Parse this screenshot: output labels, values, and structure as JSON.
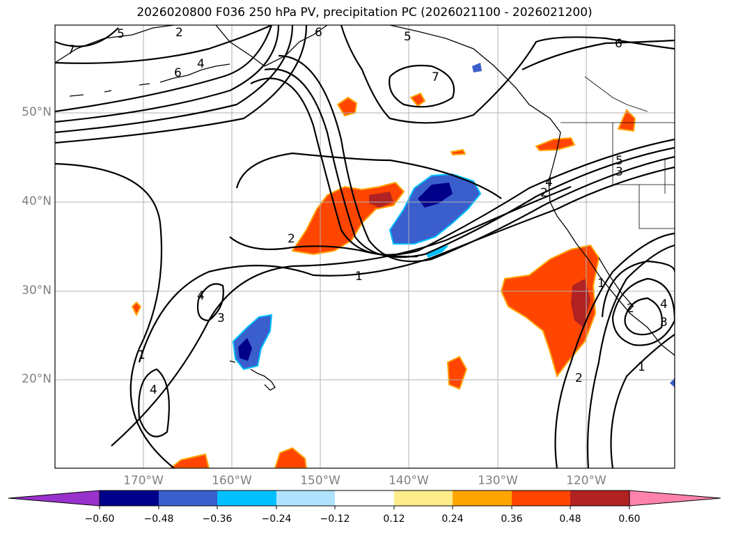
{
  "title": "2026020800 F036 250 hPa PV, precipitation PC (2026021100 - 2026021200)",
  "axes": {
    "lon_ticks": [
      "170°W",
      "160°W",
      "150°W",
      "140°W",
      "130°W",
      "120°W"
    ],
    "lat_ticks": [
      "50°N",
      "40°N",
      "30°N",
      "20°N"
    ],
    "grid": true
  },
  "contour_labels": {
    "c1": "1",
    "c2": "2",
    "c3": "3",
    "c4": "4",
    "c5": "5",
    "c6": "6",
    "c7": "7"
  },
  "colorbar": {
    "ticks": [
      "−0.60",
      "−0.48",
      "−0.36",
      "−0.24",
      "−0.12",
      "0.12",
      "0.24",
      "0.36",
      "0.48",
      "0.60"
    ],
    "colors": [
      "#9932CC",
      "#00008B",
      "#3A5FCD",
      "#00BFFF",
      "#B0E2FF",
      "#FFFFFF",
      "#FFEC8B",
      "#FFA500",
      "#FF4500",
      "#B22222",
      "#FF82AB"
    ],
    "extend": "both"
  }
}
